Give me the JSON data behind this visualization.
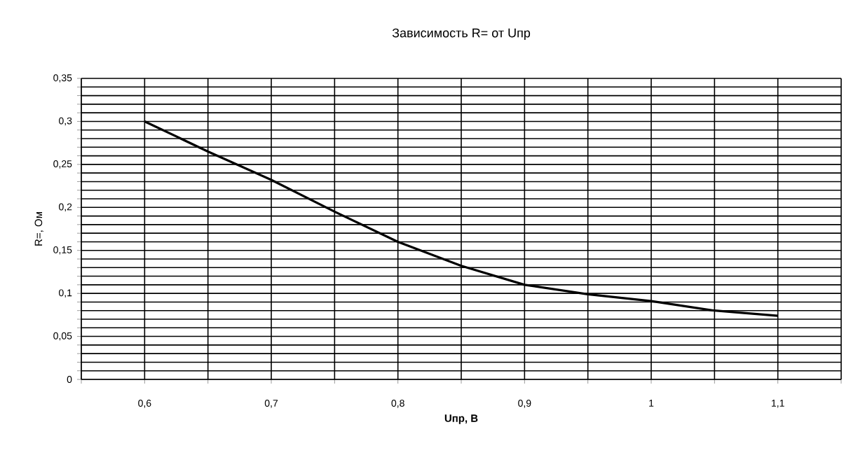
{
  "chart_data": {
    "type": "line",
    "title": "Зависимость R= от Uпр",
    "xlabel": "Uпр, В",
    "ylabel": "R=, Ом",
    "x": [
      0.6,
      0.65,
      0.7,
      0.75,
      0.8,
      0.85,
      0.9,
      0.95,
      1.0,
      1.05,
      1.1
    ],
    "series": [
      {
        "color": "#000000",
        "values": [
          0.3,
          0.265,
          0.232,
          0.195,
          0.16,
          0.132,
          0.11,
          0.099,
          0.091,
          0.08,
          0.074
        ]
      }
    ],
    "xlim": [
      0.55,
      1.15
    ],
    "xticks": [
      {
        "value": 0.55,
        "label": null
      },
      {
        "value": 0.6,
        "label": "0,6"
      },
      {
        "value": 0.65,
        "label": null
      },
      {
        "value": 0.7,
        "label": "0,7"
      },
      {
        "value": 0.75,
        "label": null
      },
      {
        "value": 0.8,
        "label": "0,8"
      },
      {
        "value": 0.85,
        "label": null
      },
      {
        "value": 0.9,
        "label": "0,9"
      },
      {
        "value": 0.95,
        "label": null
      },
      {
        "value": 1,
        "label": "1"
      },
      {
        "value": 1.05,
        "label": null
      },
      {
        "value": 1.1,
        "label": "1,1"
      },
      {
        "value": 1.15,
        "label": null
      }
    ],
    "ylim": [
      0,
      0.35
    ],
    "yticks": [
      0,
      {
        "value": 0.01,
        "label": null
      },
      {
        "value": 0.02,
        "label": null
      },
      {
        "value": 0.03,
        "label": null
      },
      {
        "value": 0.04,
        "label": null
      },
      {
        "value": 0.05,
        "label": "0,05"
      },
      {
        "value": 0.06,
        "label": null
      },
      {
        "value": 0.07,
        "label": null
      },
      {
        "value": 0.08,
        "label": null
      },
      {
        "value": 0.09,
        "label": null
      },
      {
        "value": 0.1,
        "label": "0,1"
      },
      {
        "value": 0.11,
        "label": null
      },
      {
        "value": 0.12,
        "label": null
      },
      {
        "value": 0.13,
        "label": null
      },
      {
        "value": 0.14,
        "label": null
      },
      {
        "value": 0.15,
        "label": "0,15"
      },
      {
        "value": 0.16,
        "label": null
      },
      {
        "value": 0.17,
        "label": null
      },
      {
        "value": 0.18,
        "label": null
      },
      {
        "value": 0.19,
        "label": null
      },
      {
        "value": 0.2,
        "label": "0,2"
      },
      {
        "value": 0.21,
        "label": null
      },
      {
        "value": 0.22,
        "label": null
      },
      {
        "value": 0.23,
        "label": null
      },
      {
        "value": 0.24,
        "label": null
      },
      {
        "value": 0.25,
        "label": "0,25"
      },
      {
        "value": 0.26,
        "label": null
      },
      {
        "value": 0.27,
        "label": null
      },
      {
        "value": 0.28,
        "label": null
      },
      {
        "value": 0.29,
        "label": null
      },
      {
        "value": 0.3,
        "label": "0,3"
      },
      {
        "value": 0.31,
        "label": null
      },
      {
        "value": 0.32,
        "label": null
      },
      {
        "value": 0.33,
        "label": null
      },
      {
        "value": 0.34,
        "label": null
      },
      {
        "value": 0.35,
        "label": "0,35"
      }
    ],
    "grid": true,
    "marker": "none",
    "line_style": "solid"
  }
}
